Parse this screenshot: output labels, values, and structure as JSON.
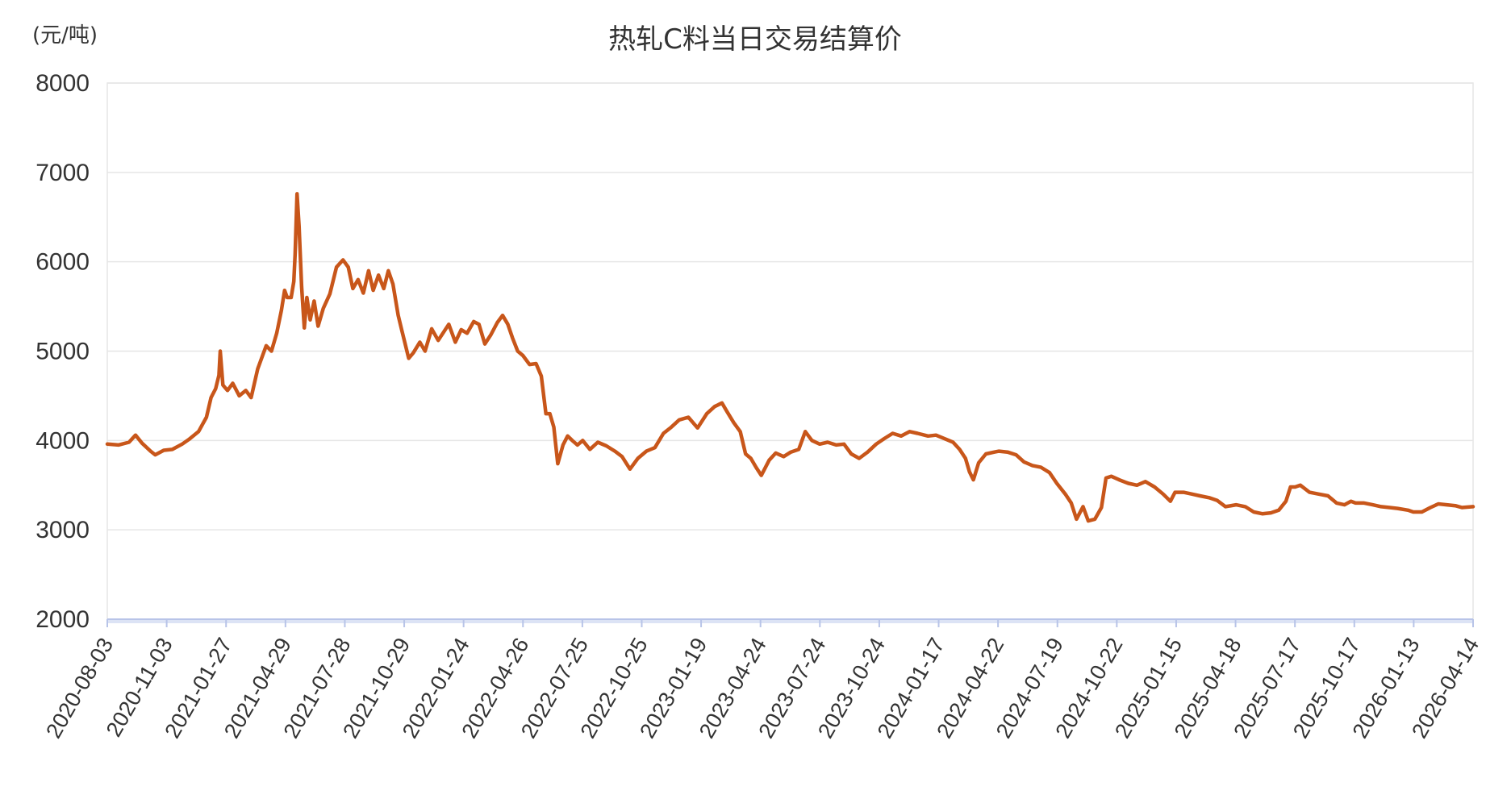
{
  "chart_data": {
    "type": "line",
    "title": "热轧C料当日交易结算价",
    "ylabel": "(元/吨)",
    "xlabel": "",
    "ylim": [
      2000,
      8000
    ],
    "yticks": [
      2000,
      3000,
      4000,
      5000,
      6000,
      7000,
      8000
    ],
    "xticks": [
      "2020-08-03",
      "2020-11-03",
      "2021-01-27",
      "2021-04-29",
      "2021-07-28",
      "2021-10-29",
      "2022-01-24",
      "2022-04-26",
      "2022-07-25",
      "2022-10-25",
      "2023-01-19",
      "2023-04-24",
      "2023-07-24",
      "2023-10-24",
      "2024-01-17",
      "2024-04-22",
      "2024-07-19",
      "2024-10-22",
      "2025-01-15",
      "2025-04-18",
      "2025-07-17",
      "2025-10-17",
      "2026-01-13",
      "2026-04-14"
    ],
    "grid": true,
    "colors": {
      "line": "#C8561A",
      "grid": "#E6E6E6",
      "axis": "#B8C4E8"
    },
    "series": [
      {
        "points": [
          [
            "2020-08-03",
            3960
          ],
          [
            "2020-08-20",
            3950
          ],
          [
            "2020-09-05",
            3980
          ],
          [
            "2020-09-15",
            4060
          ],
          [
            "2020-09-25",
            3970
          ],
          [
            "2020-10-08",
            3880
          ],
          [
            "2020-10-15",
            3840
          ],
          [
            "2020-10-28",
            3890
          ],
          [
            "2020-11-10",
            3900
          ],
          [
            "2020-11-25",
            3960
          ],
          [
            "2020-12-05",
            4010
          ],
          [
            "2020-12-20",
            4100
          ],
          [
            "2021-01-01",
            4260
          ],
          [
            "2021-01-08",
            4480
          ],
          [
            "2021-01-15",
            4580
          ],
          [
            "2021-01-20",
            4730
          ],
          [
            "2021-01-22",
            5000
          ],
          [
            "2021-01-26",
            4620
          ],
          [
            "2021-02-02",
            4560
          ],
          [
            "2021-02-10",
            4640
          ],
          [
            "2021-02-20",
            4500
          ],
          [
            "2021-03-02",
            4560
          ],
          [
            "2021-03-10",
            4480
          ],
          [
            "2021-03-20",
            4800
          ],
          [
            "2021-03-28",
            4960
          ],
          [
            "2021-04-02",
            5060
          ],
          [
            "2021-04-10",
            5000
          ],
          [
            "2021-04-18",
            5200
          ],
          [
            "2021-04-25",
            5450
          ],
          [
            "2021-04-30",
            5680
          ],
          [
            "2021-05-04",
            5600
          ],
          [
            "2021-05-10",
            5600
          ],
          [
            "2021-05-14",
            5780
          ],
          [
            "2021-05-16",
            6080
          ],
          [
            "2021-05-19",
            6760
          ],
          [
            "2021-05-22",
            6400
          ],
          [
            "2021-05-26",
            5720
          ],
          [
            "2021-05-30",
            5260
          ],
          [
            "2021-06-03",
            5600
          ],
          [
            "2021-06-08",
            5350
          ],
          [
            "2021-06-14",
            5560
          ],
          [
            "2021-06-20",
            5280
          ],
          [
            "2021-06-28",
            5480
          ],
          [
            "2021-07-08",
            5640
          ],
          [
            "2021-07-18",
            5940
          ],
          [
            "2021-07-28",
            6020
          ],
          [
            "2021-08-05",
            5940
          ],
          [
            "2021-08-12",
            5700
          ],
          [
            "2021-08-20",
            5800
          ],
          [
            "2021-08-28",
            5650
          ],
          [
            "2021-09-05",
            5900
          ],
          [
            "2021-09-12",
            5680
          ],
          [
            "2021-09-20",
            5850
          ],
          [
            "2021-09-28",
            5700
          ],
          [
            "2021-10-05",
            5900
          ],
          [
            "2021-10-12",
            5750
          ],
          [
            "2021-10-20",
            5400
          ],
          [
            "2021-10-25",
            5250
          ],
          [
            "2021-10-30",
            5100
          ],
          [
            "2021-11-05",
            4920
          ],
          [
            "2021-11-12",
            4980
          ],
          [
            "2021-11-22",
            5100
          ],
          [
            "2021-11-30",
            5000
          ],
          [
            "2021-12-10",
            5250
          ],
          [
            "2021-12-20",
            5120
          ],
          [
            "2022-01-05",
            5300
          ],
          [
            "2022-01-15",
            5100
          ],
          [
            "2022-01-24",
            5240
          ],
          [
            "2022-02-02",
            5200
          ],
          [
            "2022-02-12",
            5330
          ],
          [
            "2022-02-20",
            5300
          ],
          [
            "2022-03-01",
            5080
          ],
          [
            "2022-03-10",
            5180
          ],
          [
            "2022-03-20",
            5320
          ],
          [
            "2022-03-28",
            5400
          ],
          [
            "2022-04-05",
            5300
          ],
          [
            "2022-04-12",
            5150
          ],
          [
            "2022-04-20",
            5000
          ],
          [
            "2022-04-28",
            4950
          ],
          [
            "2022-05-08",
            4850
          ],
          [
            "2022-05-18",
            4860
          ],
          [
            "2022-05-26",
            4720
          ],
          [
            "2022-06-02",
            4300
          ],
          [
            "2022-06-08",
            4300
          ],
          [
            "2022-06-14",
            4150
          ],
          [
            "2022-06-20",
            3740
          ],
          [
            "2022-06-28",
            3950
          ],
          [
            "2022-07-05",
            4050
          ],
          [
            "2022-07-12",
            4000
          ],
          [
            "2022-07-20",
            3950
          ],
          [
            "2022-07-28",
            4000
          ],
          [
            "2022-08-08",
            3900
          ],
          [
            "2022-08-20",
            3980
          ],
          [
            "2022-09-02",
            3940
          ],
          [
            "2022-09-15",
            3880
          ],
          [
            "2022-09-26",
            3820
          ],
          [
            "2022-10-08",
            3680
          ],
          [
            "2022-10-20",
            3800
          ],
          [
            "2022-11-02",
            3880
          ],
          [
            "2022-11-15",
            3920
          ],
          [
            "2022-11-28",
            4080
          ],
          [
            "2022-12-10",
            4150
          ],
          [
            "2022-12-22",
            4230
          ],
          [
            "2023-01-05",
            4260
          ],
          [
            "2023-01-19",
            4140
          ],
          [
            "2023-02-02",
            4300
          ],
          [
            "2023-02-14",
            4380
          ],
          [
            "2023-02-25",
            4420
          ],
          [
            "2023-03-05",
            4320
          ],
          [
            "2023-03-15",
            4200
          ],
          [
            "2023-03-25",
            4100
          ],
          [
            "2023-04-02",
            3850
          ],
          [
            "2023-04-10",
            3800
          ],
          [
            "2023-04-18",
            3700
          ],
          [
            "2023-04-26",
            3610
          ],
          [
            "2023-05-08",
            3780
          ],
          [
            "2023-05-18",
            3860
          ],
          [
            "2023-05-30",
            3820
          ],
          [
            "2023-06-10",
            3870
          ],
          [
            "2023-06-22",
            3900
          ],
          [
            "2023-07-02",
            4100
          ],
          [
            "2023-07-12",
            4000
          ],
          [
            "2023-07-24",
            3960
          ],
          [
            "2023-08-05",
            3980
          ],
          [
            "2023-08-18",
            3950
          ],
          [
            "2023-08-30",
            3960
          ],
          [
            "2023-09-10",
            3850
          ],
          [
            "2023-09-22",
            3800
          ],
          [
            "2023-10-05",
            3870
          ],
          [
            "2023-10-18",
            3960
          ],
          [
            "2023-10-30",
            4020
          ],
          [
            "2023-11-12",
            4080
          ],
          [
            "2023-11-25",
            4050
          ],
          [
            "2023-12-08",
            4100
          ],
          [
            "2023-12-20",
            4080
          ],
          [
            "2024-01-05",
            4050
          ],
          [
            "2024-01-17",
            4060
          ],
          [
            "2024-01-30",
            4020
          ],
          [
            "2024-02-12",
            3980
          ],
          [
            "2024-02-22",
            3900
          ],
          [
            "2024-03-02",
            3800
          ],
          [
            "2024-03-08",
            3650
          ],
          [
            "2024-03-14",
            3560
          ],
          [
            "2024-03-22",
            3750
          ],
          [
            "2024-04-02",
            3850
          ],
          [
            "2024-04-15",
            3870
          ],
          [
            "2024-04-22",
            3880
          ],
          [
            "2024-05-05",
            3870
          ],
          [
            "2024-05-18",
            3840
          ],
          [
            "2024-05-30",
            3760
          ],
          [
            "2024-06-12",
            3720
          ],
          [
            "2024-06-25",
            3700
          ],
          [
            "2024-07-08",
            3640
          ],
          [
            "2024-07-19",
            3520
          ],
          [
            "2024-08-01",
            3400
          ],
          [
            "2024-08-10",
            3300
          ],
          [
            "2024-08-18",
            3120
          ],
          [
            "2024-08-28",
            3260
          ],
          [
            "2024-09-05",
            3100
          ],
          [
            "2024-09-15",
            3120
          ],
          [
            "2024-09-25",
            3250
          ],
          [
            "2024-10-02",
            3580
          ],
          [
            "2024-10-10",
            3600
          ],
          [
            "2024-10-22",
            3560
          ],
          [
            "2024-11-05",
            3520
          ],
          [
            "2024-11-18",
            3500
          ],
          [
            "2024-12-01",
            3540
          ],
          [
            "2024-12-15",
            3480
          ],
          [
            "2024-12-28",
            3400
          ],
          [
            "2025-01-08",
            3320
          ],
          [
            "2025-01-15",
            3420
          ],
          [
            "2025-01-28",
            3420
          ],
          [
            "2025-02-10",
            3400
          ],
          [
            "2025-02-22",
            3380
          ],
          [
            "2025-03-08",
            3360
          ],
          [
            "2025-03-20",
            3330
          ],
          [
            "2025-04-02",
            3260
          ],
          [
            "2025-04-18",
            3280
          ],
          [
            "2025-05-02",
            3260
          ],
          [
            "2025-05-15",
            3200
          ],
          [
            "2025-05-28",
            3180
          ],
          [
            "2025-06-10",
            3190
          ],
          [
            "2025-06-22",
            3220
          ],
          [
            "2025-07-03",
            3320
          ],
          [
            "2025-07-10",
            3480
          ],
          [
            "2025-07-17",
            3480
          ],
          [
            "2025-07-25",
            3500
          ],
          [
            "2025-08-08",
            3420
          ],
          [
            "2025-08-22",
            3400
          ],
          [
            "2025-09-05",
            3380
          ],
          [
            "2025-09-18",
            3300
          ],
          [
            "2025-09-30",
            3280
          ],
          [
            "2025-10-10",
            3320
          ],
          [
            "2025-10-17",
            3300
          ],
          [
            "2025-10-30",
            3300
          ],
          [
            "2025-11-12",
            3280
          ],
          [
            "2025-11-25",
            3260
          ],
          [
            "2025-12-08",
            3250
          ],
          [
            "2025-12-20",
            3240
          ],
          [
            "2026-01-05",
            3220
          ],
          [
            "2026-01-13",
            3200
          ],
          [
            "2026-01-26",
            3200
          ],
          [
            "2026-02-08",
            3250
          ],
          [
            "2026-02-20",
            3290
          ],
          [
            "2026-03-05",
            3280
          ],
          [
            "2026-03-18",
            3270
          ],
          [
            "2026-03-28",
            3250
          ],
          [
            "2026-04-14",
            3260
          ]
        ]
      }
    ]
  }
}
